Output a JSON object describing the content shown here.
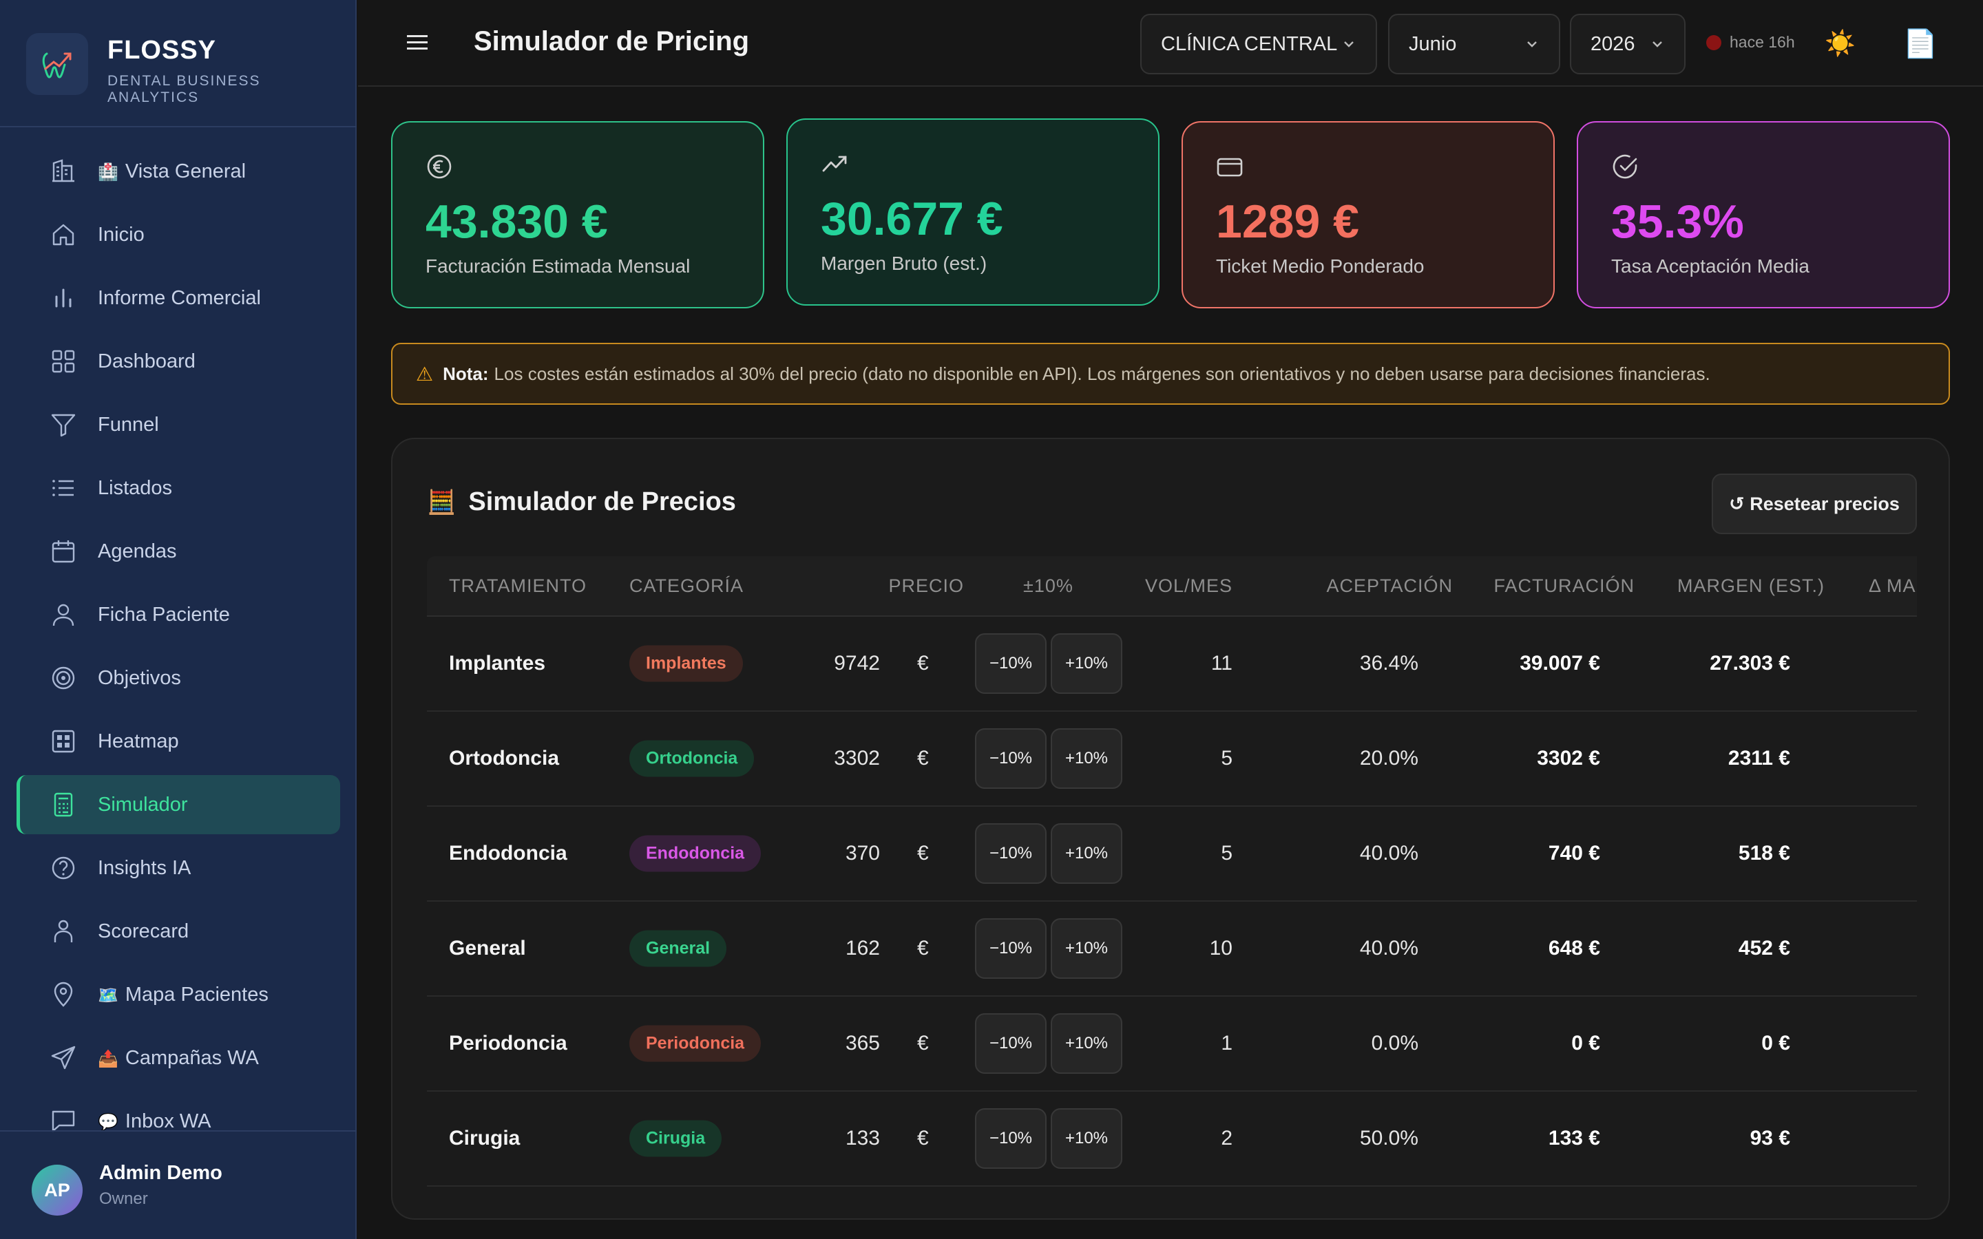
{
  "brand": {
    "name": "FLOSSY",
    "subtitle": "DENTAL BUSINESS ANALYTICS"
  },
  "sidebar": {
    "items": [
      {
        "label": "Vista General",
        "icon": "building-icon",
        "emoji": "🏥"
      },
      {
        "label": "Inicio",
        "icon": "home-icon"
      },
      {
        "label": "Informe Comercial",
        "icon": "bar-chart-icon"
      },
      {
        "label": "Dashboard",
        "icon": "grid-icon"
      },
      {
        "label": "Funnel",
        "icon": "funnel-icon"
      },
      {
        "label": "Listados",
        "icon": "list-icon"
      },
      {
        "label": "Agendas",
        "icon": "calendar-icon"
      },
      {
        "label": "Ficha Paciente",
        "icon": "user-icon"
      },
      {
        "label": "Objetivos",
        "icon": "target-icon"
      },
      {
        "label": "Heatmap",
        "icon": "heatmap-icon"
      },
      {
        "label": "Simulador",
        "icon": "calculator-icon",
        "active": true
      },
      {
        "label": "Insights IA",
        "icon": "help-circle-icon"
      },
      {
        "label": "Scorecard",
        "icon": "user-badge-icon"
      },
      {
        "label": "Mapa Pacientes",
        "icon": "map-pin-icon",
        "emoji": "🗺️"
      },
      {
        "label": "Campañas WA",
        "icon": "send-icon",
        "emoji": "📤"
      },
      {
        "label": "Inbox WA",
        "icon": "message-icon",
        "emoji": "💬"
      }
    ]
  },
  "user": {
    "initials": "AP",
    "name": "Admin Demo",
    "role": "Owner"
  },
  "header": {
    "title": "Simulador de Pricing",
    "clinic": "CLÍNICA CENTRAL",
    "month": "Junio",
    "year": "2026",
    "sync": "hace 16h",
    "theme_icon": "☀️",
    "doc_icon": "📄"
  },
  "kpis": [
    {
      "value": "43.830 €",
      "label": "Facturación Estimada Mensual",
      "icon": "euro-icon",
      "color": "#2ed592"
    },
    {
      "value": "30.677 €",
      "label": "Margen Bruto (est.)",
      "icon": "trending-up-icon",
      "color": "#24d39a"
    },
    {
      "value": "1289 €",
      "label": "Ticket Medio Ponderado",
      "icon": "credit-card-icon",
      "color": "#f4705f"
    },
    {
      "value": "35.3%",
      "label": "Tasa Aceptación Media",
      "icon": "check-circle-icon",
      "color": "#de4af0"
    }
  ],
  "note": {
    "icon": "⚠",
    "label": "Nota:",
    "text": "Los costes están estimados al 30% del precio (dato no disponible en API). Los márgenes son orientativos y no deben usarse para decisiones financieras."
  },
  "simulator": {
    "title": "Simulador de Precios",
    "icon": "🧮",
    "reset": "↺ Resetear precios",
    "columns": [
      "TRATAMIENTO",
      "CATEGORÍA",
      "PRECIO",
      "±10%",
      "VOL/MES",
      "ACEPTACIÓN",
      "FACTURACIÓN",
      "MARGEN (EST.)",
      "Δ MARGEN"
    ],
    "minus_label": "−10%",
    "plus_label": "+10%",
    "currency": "€",
    "rows": [
      {
        "treatment": "Implantes",
        "category": "Implantes",
        "tag_bg": "#3a2420",
        "tag_fg": "#f27a5e",
        "price": "9742",
        "volume": "11",
        "acceptance": "36.4%",
        "billing": "39.007 €",
        "margin": "27.303 €"
      },
      {
        "treatment": "Ortodoncia",
        "category": "Ortodoncia",
        "tag_bg": "#173528",
        "tag_fg": "#36d08c",
        "price": "3302",
        "volume": "5",
        "acceptance": "20.0%",
        "billing": "3302 €",
        "margin": "2311 €"
      },
      {
        "treatment": "Endodoncia",
        "category": "Endodoncia",
        "tag_bg": "#36203a",
        "tag_fg": "#d958e6",
        "price": "370",
        "volume": "5",
        "acceptance": "40.0%",
        "billing": "740 €",
        "margin": "518 €"
      },
      {
        "treatment": "General",
        "category": "General",
        "tag_bg": "#173528",
        "tag_fg": "#3ad48f",
        "price": "162",
        "volume": "10",
        "acceptance": "40.0%",
        "billing": "648 €",
        "margin": "452 €"
      },
      {
        "treatment": "Periodoncia",
        "category": "Periodoncia",
        "tag_bg": "#3a2420",
        "tag_fg": "#f0705c",
        "price": "365",
        "volume": "1",
        "acceptance": "0.0%",
        "billing": "0 €",
        "margin": "0 €"
      },
      {
        "treatment": "Cirugia",
        "category": "Cirugia",
        "tag_bg": "#173528",
        "tag_fg": "#36d08c",
        "price": "133",
        "volume": "2",
        "acceptance": "50.0%",
        "billing": "133 €",
        "margin": "93 €"
      }
    ]
  }
}
